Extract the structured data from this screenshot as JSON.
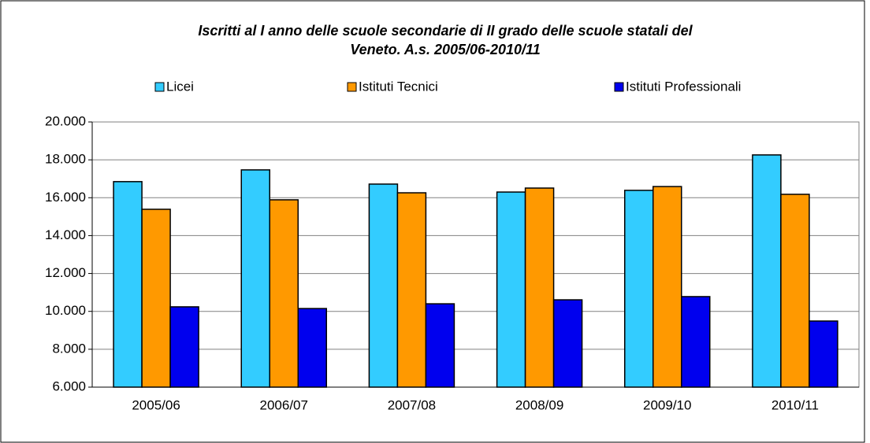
{
  "chart_data": {
    "type": "bar",
    "title": [
      "Iscritti al I anno delle scuole secondarie di II grado delle scuole statali del",
      "Veneto. A.s. 2005/06-2010/11"
    ],
    "categories": [
      "2005/06",
      "2006/07",
      "2007/08",
      "2008/09",
      "2009/10",
      "2010/11"
    ],
    "series": [
      {
        "name": "Licei",
        "color": "#33ccff",
        "values": [
          16850,
          17470,
          16720,
          16300,
          16390,
          18260
        ]
      },
      {
        "name": "Istituti Tecnici",
        "color": "#ff9900",
        "values": [
          15390,
          15890,
          16260,
          16510,
          16590,
          16180
        ]
      },
      {
        "name": "Istituti Professionali",
        "color": "#0000ee",
        "values": [
          10240,
          10150,
          10400,
          10610,
          10780,
          9490
        ]
      }
    ],
    "ylim": [
      6000,
      20000
    ],
    "yticks": [
      {
        "value": 6000,
        "label": "6.000"
      },
      {
        "value": 8000,
        "label": "8.000"
      },
      {
        "value": 10000,
        "label": "10.000"
      },
      {
        "value": 12000,
        "label": "12.000"
      },
      {
        "value": 14000,
        "label": "14.000"
      },
      {
        "value": 16000,
        "label": "16.000"
      },
      {
        "value": 18000,
        "label": "18.000"
      },
      {
        "value": 20000,
        "label": "20.000"
      }
    ],
    "grid": true,
    "legend": "top"
  }
}
